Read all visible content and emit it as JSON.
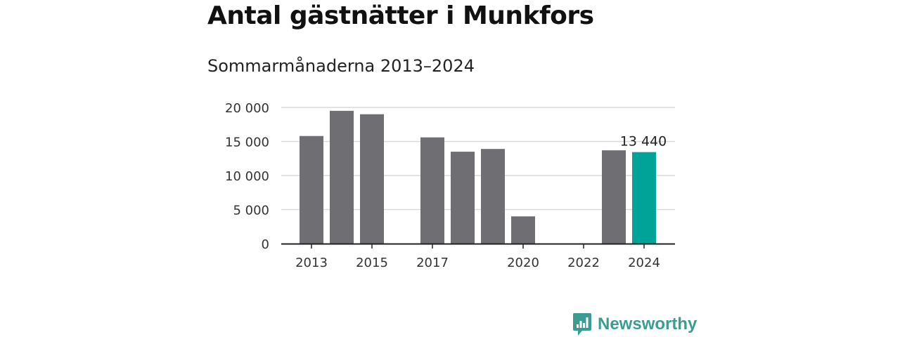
{
  "title": "Antal gästnätter i Munkfors",
  "subtitle": "Sommarmånaderna 2013–2024",
  "brand": {
    "name": "Newsworthy",
    "logo_icon": "newsworthy-bar-chart-logo-icon",
    "color": "#3d9c91"
  },
  "chart_data": {
    "type": "bar",
    "title": "Antal gästnätter i Munkfors",
    "subtitle": "Sommarmånaderna 2013–2024",
    "categories": [
      "2013",
      "2014",
      "2015",
      "2016",
      "2017",
      "2018",
      "2019",
      "2020",
      "2021",
      "2022",
      "2023",
      "2024"
    ],
    "values": [
      15800,
      19500,
      19000,
      null,
      15600,
      13500,
      13900,
      4000,
      null,
      null,
      13700,
      13440
    ],
    "xticks": [
      "2013",
      "2015",
      "2017",
      "2020",
      "2022",
      "2024"
    ],
    "yticks": [
      0,
      5000,
      10000,
      15000,
      20000
    ],
    "ytick_labels": [
      "0",
      "5 000",
      "10 000",
      "15 000",
      "20 000"
    ],
    "ylim": [
      0,
      20000
    ],
    "grid": "horizontal",
    "highlight": {
      "category": "2024",
      "label": "13 440",
      "color": "#00a398"
    },
    "bar_color": "#6f6e73",
    "axis_color": "#222222",
    "grid_color": "#d9d9d9"
  }
}
